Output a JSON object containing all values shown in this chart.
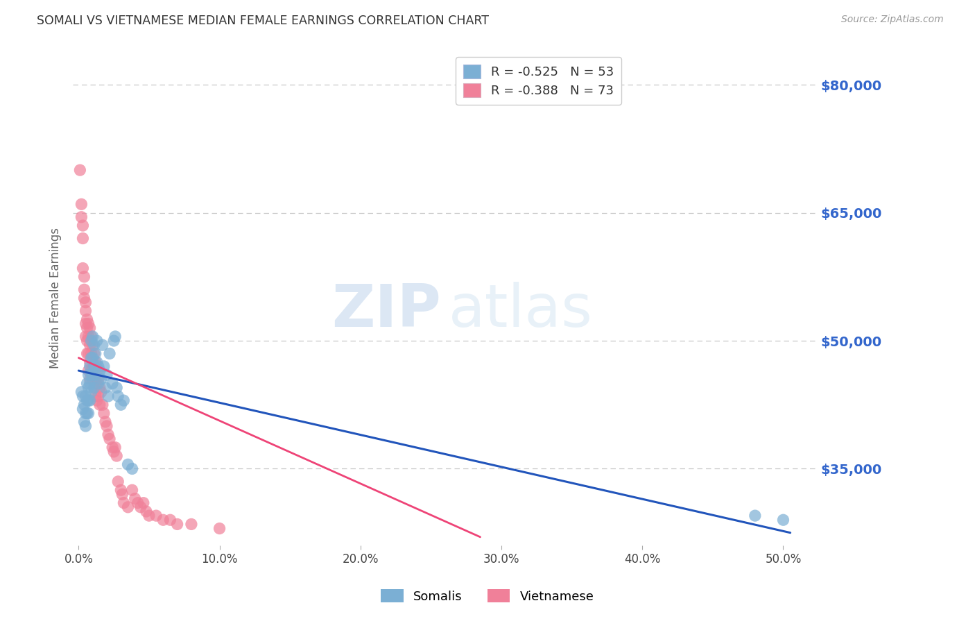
{
  "title": "SOMALI VS VIETNAMESE MEDIAN FEMALE EARNINGS CORRELATION CHART",
  "source": "Source: ZipAtlas.com",
  "ylabel": "Median Female Earnings",
  "x_ticks": [
    0.0,
    0.1,
    0.2,
    0.3,
    0.4,
    0.5
  ],
  "x_tick_labels": [
    "0.0%",
    "10.0%",
    "20.0%",
    "30.0%",
    "40.0%",
    "50.0%"
  ],
  "y_tick_values": [
    35000,
    50000,
    65000,
    80000
  ],
  "y_tick_labels": [
    "$35,000",
    "$50,000",
    "$65,000",
    "$80,000"
  ],
  "y_min": 26000,
  "y_max": 84000,
  "x_min": -0.004,
  "x_max": 0.524,
  "somali_color": "#7bafd4",
  "vietnamese_color": "#f08099",
  "somali_line_color": "#2255bb",
  "vietnamese_line_color": "#ee4477",
  "grid_color": "#c8c8c8",
  "background_color": "#ffffff",
  "title_color": "#333333",
  "right_label_color": "#3366cc",
  "legend_R_color": "#cc2244",
  "legend_N_color": "#2255cc",
  "somali_scatter_x": [
    0.002,
    0.003,
    0.003,
    0.004,
    0.004,
    0.005,
    0.005,
    0.005,
    0.006,
    0.006,
    0.006,
    0.007,
    0.007,
    0.007,
    0.007,
    0.008,
    0.008,
    0.008,
    0.009,
    0.009,
    0.009,
    0.009,
    0.01,
    0.01,
    0.01,
    0.011,
    0.011,
    0.011,
    0.012,
    0.012,
    0.013,
    0.013,
    0.014,
    0.014,
    0.015,
    0.016,
    0.017,
    0.018,
    0.019,
    0.02,
    0.021,
    0.022,
    0.024,
    0.025,
    0.026,
    0.027,
    0.028,
    0.03,
    0.032,
    0.035,
    0.038,
    0.48,
    0.5
  ],
  "somali_scatter_y": [
    44000,
    43500,
    42000,
    42500,
    40500,
    43500,
    41500,
    40000,
    45000,
    43000,
    41500,
    46000,
    44500,
    43000,
    41500,
    47000,
    45000,
    43000,
    50000,
    48000,
    46000,
    44000,
    50500,
    48000,
    46000,
    49500,
    47000,
    44500,
    48500,
    46000,
    50000,
    47500,
    47000,
    45000,
    46500,
    45500,
    49500,
    47000,
    44500,
    46000,
    43500,
    48500,
    45000,
    50000,
    50500,
    44500,
    43500,
    42500,
    43000,
    35500,
    35000,
    29500,
    29000
  ],
  "vietnamese_scatter_x": [
    0.001,
    0.002,
    0.002,
    0.003,
    0.003,
    0.003,
    0.004,
    0.004,
    0.004,
    0.005,
    0.005,
    0.005,
    0.005,
    0.006,
    0.006,
    0.006,
    0.006,
    0.007,
    0.007,
    0.007,
    0.007,
    0.008,
    0.008,
    0.008,
    0.008,
    0.009,
    0.009,
    0.009,
    0.01,
    0.01,
    0.01,
    0.011,
    0.011,
    0.011,
    0.012,
    0.012,
    0.012,
    0.013,
    0.013,
    0.013,
    0.014,
    0.014,
    0.015,
    0.015,
    0.016,
    0.017,
    0.018,
    0.019,
    0.02,
    0.021,
    0.022,
    0.024,
    0.025,
    0.026,
    0.027,
    0.028,
    0.03,
    0.031,
    0.032,
    0.035,
    0.038,
    0.04,
    0.042,
    0.044,
    0.046,
    0.048,
    0.05,
    0.055,
    0.06,
    0.065,
    0.07,
    0.08,
    0.1
  ],
  "vietnamese_scatter_y": [
    70000,
    66000,
    64500,
    63500,
    62000,
    58500,
    57500,
    56000,
    55000,
    54500,
    53500,
    52000,
    50500,
    52500,
    51500,
    50000,
    48500,
    52000,
    50500,
    48500,
    46500,
    51500,
    49500,
    47500,
    45500,
    50500,
    48500,
    46500,
    49500,
    47500,
    45500,
    48500,
    47000,
    44500,
    47500,
    45500,
    43500,
    46500,
    45000,
    43000,
    45500,
    43500,
    44500,
    42500,
    44000,
    42500,
    41500,
    40500,
    40000,
    39000,
    38500,
    37500,
    37000,
    37500,
    36500,
    33500,
    32500,
    32000,
    31000,
    30500,
    32500,
    31500,
    31000,
    30500,
    31000,
    30000,
    29500,
    29500,
    29000,
    29000,
    28500,
    28500,
    28000
  ],
  "somali_trend_x": [
    0.0,
    0.505
  ],
  "somali_trend_y": [
    46500,
    27500
  ],
  "vietnamese_trend_x": [
    0.0,
    0.285
  ],
  "vietnamese_trend_y": [
    48000,
    27000
  ]
}
